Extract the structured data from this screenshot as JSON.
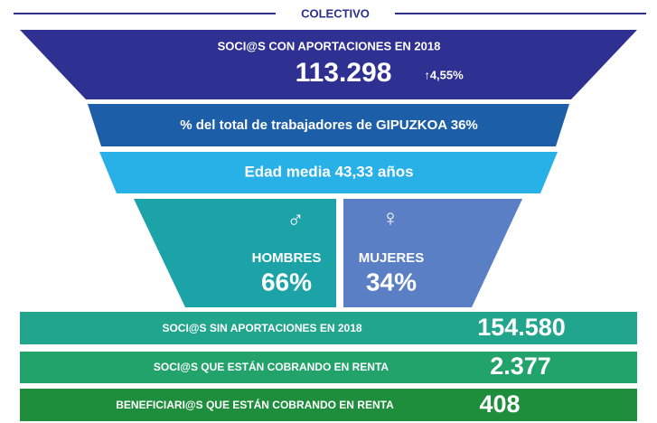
{
  "header": {
    "title": "COLECTIVO"
  },
  "funnel": {
    "main": {
      "label": "SOCI@S CON APORTACIONES EN 2018",
      "value": "113.298",
      "change": "↑4,55%"
    },
    "share": "% del total de trabajadores de GIPUZKOA 36%",
    "age": "Edad media 43,33 años",
    "gender": [
      {
        "symbol": "♂",
        "label": "HOMBRES",
        "value": "66%"
      },
      {
        "symbol": "♀",
        "label": "MUJERES",
        "value": "34%"
      }
    ]
  },
  "rows": [
    {
      "label": "SOCI@S SIN APORTACIONES EN 2018",
      "value": "154.580"
    },
    {
      "label": "SOCI@S QUE ESTÁN COBRANDO EN RENTA",
      "value": "2.377"
    },
    {
      "label": "BENEFICIARI@S QUE ESTÁN COBRANDO EN RENTA",
      "value": "408"
    }
  ]
}
